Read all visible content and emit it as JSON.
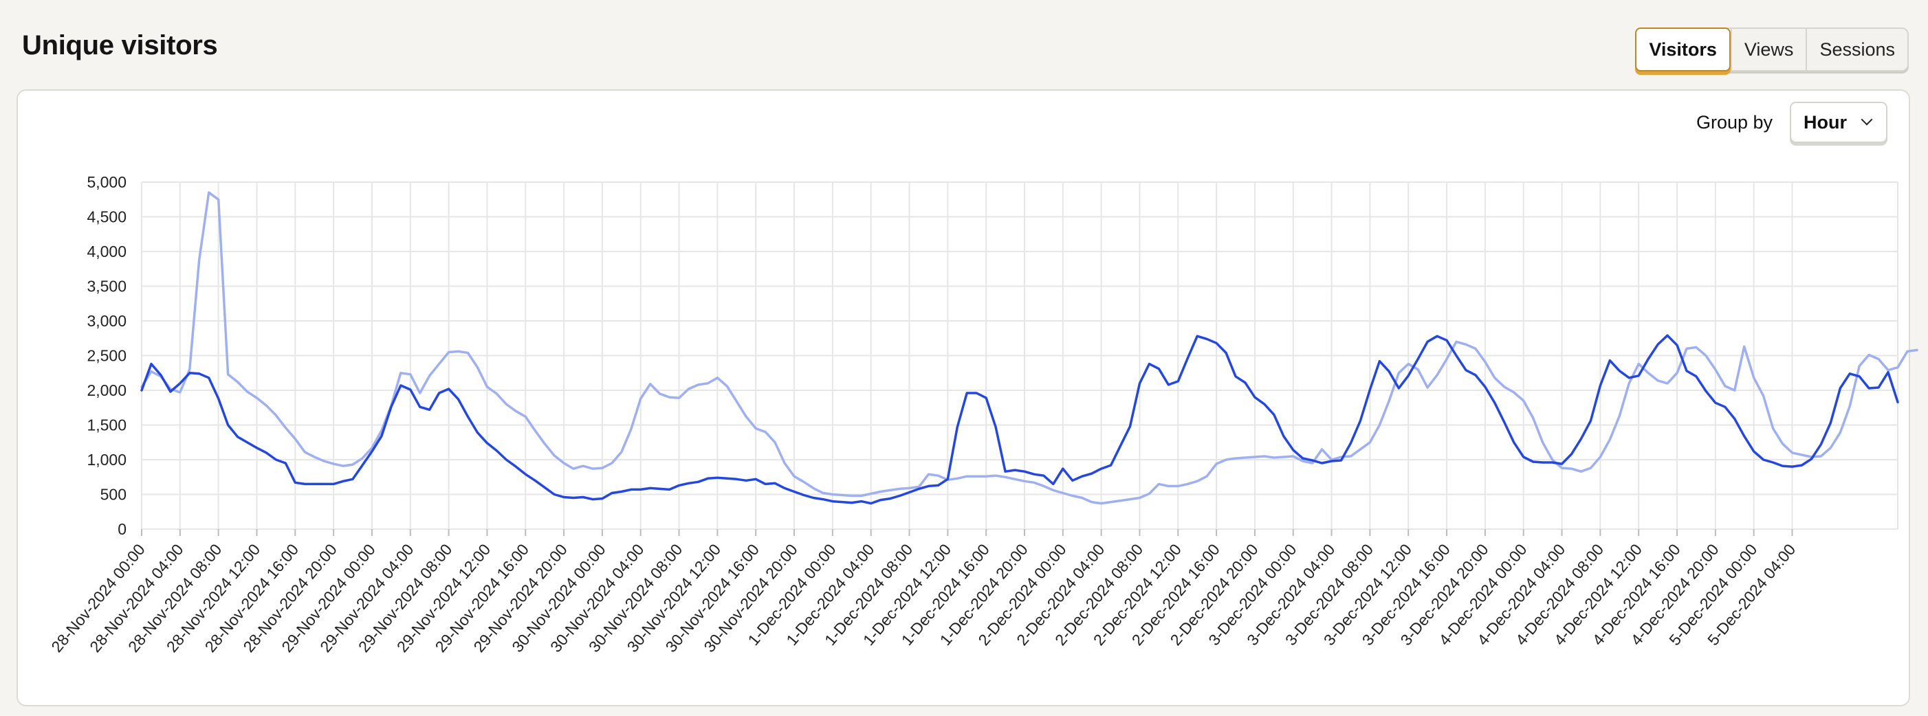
{
  "page": {
    "title": "Unique visitors"
  },
  "tabs": [
    {
      "label": "Visitors",
      "active": true
    },
    {
      "label": "Views",
      "active": false
    },
    {
      "label": "Sessions",
      "active": false
    }
  ],
  "group_by": {
    "label": "Group by",
    "value": "Hour"
  },
  "colors": {
    "current": "#2448df",
    "previous": "#9fb0f2",
    "grid": "#e6e6e6",
    "accent": "#e0a43a"
  },
  "chart_data": {
    "type": "line",
    "title": "Unique visitors",
    "xlabel": "",
    "ylabel": "",
    "ylim": [
      0,
      5000
    ],
    "yticks": [
      "0",
      "500",
      "1,000",
      "1,500",
      "2,000",
      "2,500",
      "3,000",
      "3,500",
      "4,000",
      "4,500",
      "5,000"
    ],
    "grid": true,
    "x_start": "28-Nov-2024 00:00",
    "x_step": "1 hour",
    "x_tick_every_hours": 4,
    "x_tick_labels": [
      "28-Nov-2024 00:00",
      "28-Nov-2024 04:00",
      "28-Nov-2024 08:00",
      "28-Nov-2024 12:00",
      "28-Nov-2024 16:00",
      "28-Nov-2024 20:00",
      "29-Nov-2024 00:00",
      "29-Nov-2024 04:00",
      "29-Nov-2024 08:00",
      "29-Nov-2024 12:00",
      "29-Nov-2024 16:00",
      "29-Nov-2024 20:00",
      "30-Nov-2024 00:00",
      "30-Nov-2024 04:00",
      "30-Nov-2024 08:00",
      "30-Nov-2024 12:00",
      "30-Nov-2024 16:00",
      "30-Nov-2024 20:00",
      "1-Dec-2024 00:00",
      "1-Dec-2024 04:00",
      "1-Dec-2024 08:00",
      "1-Dec-2024 12:00",
      "1-Dec-2024 16:00",
      "1-Dec-2024 20:00",
      "2-Dec-2024 00:00",
      "2-Dec-2024 04:00",
      "2-Dec-2024 08:00",
      "2-Dec-2024 12:00",
      "2-Dec-2024 16:00",
      "2-Dec-2024 20:00",
      "3-Dec-2024 00:00",
      "3-Dec-2024 04:00",
      "3-Dec-2024 08:00",
      "3-Dec-2024 12:00",
      "3-Dec-2024 16:00",
      "3-Dec-2024 20:00",
      "4-Dec-2024 00:00",
      "4-Dec-2024 04:00",
      "4-Dec-2024 08:00",
      "4-Dec-2024 12:00",
      "4-Dec-2024 16:00",
      "4-Dec-2024 20:00",
      "5-Dec-2024 00:00",
      "5-Dec-2024 04:00"
    ],
    "series": [
      {
        "values": [
          2000,
          2380,
          2220,
          1980,
          2100,
          2250,
          2240,
          2180,
          1880,
          1500,
          1330,
          1250,
          1170,
          1100,
          1000,
          950,
          670,
          650,
          650,
          650,
          650,
          690,
          720,
          920,
          1120,
          1340,
          1760,
          2070,
          2010,
          1760,
          1720,
          1960,
          2020,
          1870,
          1620,
          1390,
          1240,
          1130,
          1000,
          900,
          790,
          700,
          600,
          500,
          460,
          450,
          460,
          430,
          440,
          520,
          540,
          570,
          570,
          590,
          580,
          570,
          630,
          660,
          680,
          730,
          740,
          730,
          720,
          700,
          720,
          650,
          660,
          590,
          540,
          490,
          450,
          430,
          400,
          390,
          380,
          400,
          370,
          420,
          440,
          480,
          530,
          580,
          620,
          630,
          720,
          1470,
          1960,
          1960,
          1890,
          1470,
          830,
          850,
          830,
          790,
          770,
          650,
          870,
          700,
          760,
          800,
          870,
          920,
          1200,
          1480,
          2100,
          2380,
          2310,
          2080,
          2130,
          2460,
          2780,
          2740,
          2680,
          2540,
          2200,
          2110,
          1900,
          1800,
          1650,
          1340,
          1140,
          1020,
          990,
          950,
          980,
          990,
          1240,
          1560,
          2010,
          2420,
          2270,
          2030,
          2210,
          2450,
          2700,
          2780,
          2720,
          2500,
          2290,
          2220,
          2050,
          1820,
          1540,
          1250,
          1040,
          970,
          960,
          960,
          940,
          1080,
          1300,
          1560,
          2070,
          2430,
          2280,
          2180,
          2210,
          2450,
          2660,
          2790,
          2650,
          2280,
          2200,
          1990,
          1820,
          1760,
          1590,
          1340,
          1120,
          1000,
          960,
          910,
          900,
          920,
          1010,
          1220,
          1530,
          2030,
          2240,
          2200,
          2030,
          2040,
          2260,
          1830
        ]
      },
      {
        "values": [
          2050,
          2270,
          2200,
          2020,
          1970,
          2300,
          3880,
          4850,
          4750,
          2230,
          2120,
          1980,
          1890,
          1780,
          1640,
          1460,
          1300,
          1110,
          1040,
          980,
          940,
          910,
          930,
          1020,
          1170,
          1420,
          1780,
          2250,
          2230,
          1960,
          2210,
          2380,
          2550,
          2560,
          2540,
          2330,
          2050,
          1950,
          1800,
          1700,
          1620,
          1420,
          1230,
          1060,
          950,
          870,
          910,
          870,
          880,
          950,
          1110,
          1440,
          1880,
          2090,
          1950,
          1900,
          1890,
          2020,
          2080,
          2100,
          2180,
          2060,
          1840,
          1620,
          1450,
          1400,
          1250,
          950,
          760,
          680,
          590,
          520,
          500,
          490,
          480,
          480,
          510,
          540,
          560,
          580,
          590,
          610,
          790,
          770,
          710,
          730,
          760,
          760,
          760,
          770,
          750,
          720,
          690,
          670,
          620,
          560,
          520,
          480,
          450,
          390,
          370,
          390,
          410,
          430,
          450,
          510,
          650,
          620,
          620,
          650,
          690,
          760,
          940,
          1000,
          1020,
          1030,
          1040,
          1050,
          1030,
          1040,
          1050,
          980,
          950,
          1150,
          1000,
          1040,
          1050,
          1150,
          1250,
          1500,
          1850,
          2250,
          2380,
          2300,
          2040,
          2220,
          2450,
          2700,
          2660,
          2600,
          2410,
          2180,
          2050,
          1970,
          1850,
          1600,
          1250,
          1000,
          880,
          870,
          830,
          880,
          1040,
          1290,
          1630,
          2100,
          2380,
          2250,
          2140,
          2100,
          2250,
          2600,
          2620,
          2500,
          2300,
          2060,
          2000,
          2630,
          2180,
          1920,
          1450,
          1230,
          1100,
          1070,
          1040,
          1050,
          1170,
          1390,
          1770,
          2350,
          2510,
          2450,
          2290,
          2330,
          2560,
          2580
        ]
      }
    ]
  }
}
